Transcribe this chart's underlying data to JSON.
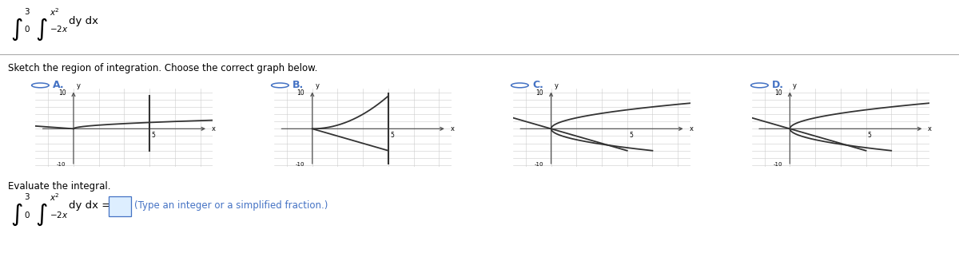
{
  "sketch_text": "Sketch the region of integration. Choose the correct graph below.",
  "evaluate_text": "Evaluate the integral.",
  "answer_hint": "(Type an integer or a simplified fraction.)",
  "graph_labels": [
    "A.",
    "B.",
    "C.",
    "D."
  ],
  "circle_color": "#4472C4",
  "curve_color": "#333333",
  "grid_color": "#cccccc",
  "axis_color": "#555555",
  "bg_color": "#ffffff",
  "graph_xlim": [
    -1.5,
    5.5
  ],
  "graph_ylim": [
    -10.5,
    11.0
  ],
  "sep_color": "#aaaaaa"
}
